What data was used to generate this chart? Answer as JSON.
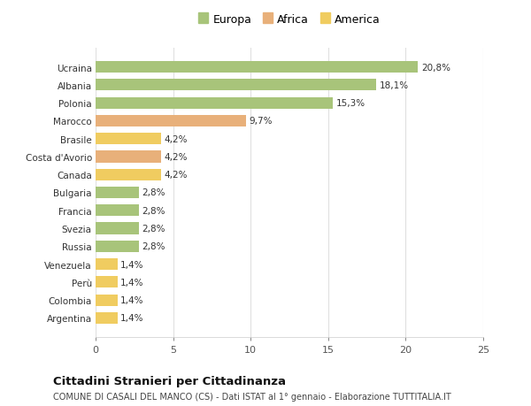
{
  "categories": [
    "Argentina",
    "Colombia",
    "Perù",
    "Venezuela",
    "Russia",
    "Svezia",
    "Francia",
    "Bulgaria",
    "Canada",
    "Costa d'Avorio",
    "Brasile",
    "Marocco",
    "Polonia",
    "Albania",
    "Ucraina"
  ],
  "values": [
    1.4,
    1.4,
    1.4,
    1.4,
    2.8,
    2.8,
    2.8,
    2.8,
    4.2,
    4.2,
    4.2,
    9.7,
    15.3,
    18.1,
    20.8
  ],
  "labels": [
    "1,4%",
    "1,4%",
    "1,4%",
    "1,4%",
    "2,8%",
    "2,8%",
    "2,8%",
    "2,8%",
    "4,2%",
    "4,2%",
    "4,2%",
    "9,7%",
    "15,3%",
    "18,1%",
    "20,8%"
  ],
  "continents": [
    "America",
    "America",
    "America",
    "America",
    "Europa",
    "Europa",
    "Europa",
    "Europa",
    "America",
    "Africa",
    "America",
    "Africa",
    "Europa",
    "Europa",
    "Europa"
  ],
  "colors": {
    "Europa": "#a8c47a",
    "Africa": "#e8b07a",
    "America": "#f0cc60"
  },
  "xlim": [
    0,
    25
  ],
  "xticks": [
    0,
    5,
    10,
    15,
    20,
    25
  ],
  "title": "Cittadini Stranieri per Cittadinanza",
  "subtitle": "COMUNE DI CASALI DEL MANCO (CS) - Dati ISTAT al 1° gennaio - Elaborazione TUTTITALIA.IT",
  "bg_color": "#ffffff",
  "grid_color": "#e0e0e0"
}
